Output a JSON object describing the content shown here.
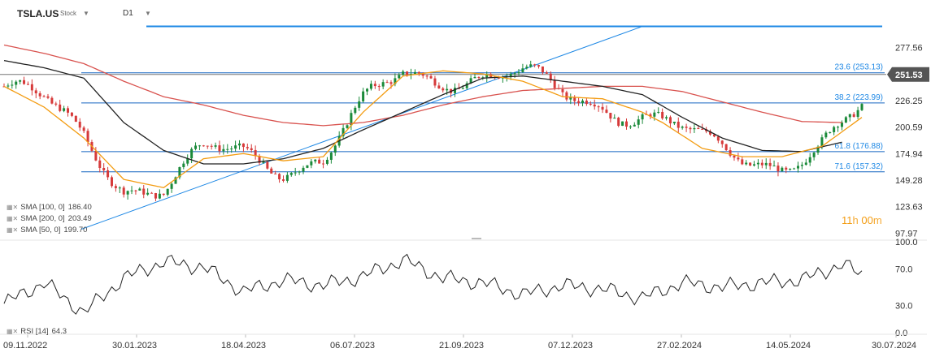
{
  "header": {
    "symbol": "TSLA.US",
    "symbol_type": "Stock",
    "timeframe": "D1"
  },
  "indicators": [
    {
      "label": "SMA [100, 0]",
      "value": "186.40",
      "color": "#222222"
    },
    {
      "label": "SMA [200, 0]",
      "value": "203.49",
      "color": "#d9534f"
    },
    {
      "label": "SMA [50, 0]",
      "value": "199.70",
      "color": "#f39c12"
    }
  ],
  "rsi_label": {
    "label": "RSI [14]",
    "value": "64.3"
  },
  "countdown": {
    "hours": "11",
    "h_unit": "h",
    "minutes": "00",
    "m_unit": "m"
  },
  "chart_data": [
    {
      "type": "candlestick",
      "title": "TSLA.US",
      "price_axis_ticks": [
        "277.56",
        "251.53",
        "226.25",
        "200.59",
        "174.94",
        "149.28",
        "123.63",
        "97.97"
      ],
      "ylim": [
        92,
        300
      ],
      "date_axis_ticks": [
        "09.11.2022",
        "30.01.2023",
        "18.04.2023",
        "06.07.2023",
        "21.09.2023",
        "07.12.2023",
        "27.02.2024",
        "14.05.2024",
        "30.07.2024"
      ],
      "current_price": "251.53",
      "current_price_color": "#555555",
      "fibonacci_levels": [
        {
          "label": "23.6 (253.13)",
          "value": 253.13
        },
        {
          "label": "38.2 (223.99)",
          "value": 223.99
        },
        {
          "label": "61.8 (176.88)",
          "value": 176.88
        },
        {
          "label": "71.6 (157.32)",
          "value": 157.32
        }
      ],
      "top_resistance_value": 298,
      "trendline": {
        "from": {
          "date": "Jan 2023",
          "value": 101.8
        },
        "to": {
          "date": "Oct 2023",
          "value": 298
        }
      },
      "ma_keypoints": {
        "sma50": [
          [
            0,
            240
          ],
          [
            10,
            220
          ],
          [
            20,
            190
          ],
          [
            30,
            150
          ],
          [
            40,
            142
          ],
          [
            50,
            170
          ],
          [
            60,
            175
          ],
          [
            70,
            168
          ],
          [
            80,
            172
          ],
          [
            90,
            215
          ],
          [
            100,
            250
          ],
          [
            110,
            255
          ],
          [
            120,
            252
          ],
          [
            130,
            245
          ],
          [
            140,
            230
          ],
          [
            150,
            228
          ],
          [
            160,
            215
          ],
          [
            165,
            205
          ],
          [
            175,
            180
          ],
          [
            185,
            172
          ],
          [
            195,
            172
          ],
          [
            205,
            182
          ],
          [
            215,
            210
          ]
        ],
        "sma100": [
          [
            0,
            265
          ],
          [
            10,
            258
          ],
          [
            20,
            248
          ],
          [
            30,
            205
          ],
          [
            40,
            178
          ],
          [
            50,
            165
          ],
          [
            60,
            165
          ],
          [
            70,
            170
          ],
          [
            80,
            180
          ],
          [
            90,
            198
          ],
          [
            100,
            215
          ],
          [
            110,
            232
          ],
          [
            120,
            248
          ],
          [
            130,
            250
          ],
          [
            140,
            245
          ],
          [
            150,
            240
          ],
          [
            160,
            232
          ],
          [
            170,
            210
          ],
          [
            180,
            190
          ],
          [
            190,
            178
          ],
          [
            200,
            177
          ],
          [
            210,
            186
          ]
        ],
        "sma200": [
          [
            0,
            280
          ],
          [
            10,
            272
          ],
          [
            20,
            262
          ],
          [
            30,
            245
          ],
          [
            40,
            230
          ],
          [
            50,
            222
          ],
          [
            60,
            212
          ],
          [
            70,
            205
          ],
          [
            80,
            202
          ],
          [
            90,
            205
          ],
          [
            100,
            212
          ],
          [
            110,
            222
          ],
          [
            120,
            230
          ],
          [
            130,
            236
          ],
          [
            140,
            238
          ],
          [
            150,
            240
          ],
          [
            160,
            240
          ],
          [
            170,
            235
          ],
          [
            180,
            225
          ],
          [
            190,
            215
          ],
          [
            200,
            206
          ],
          [
            210,
            205
          ]
        ]
      },
      "series": [
        {
          "name": "SMA [100, 0]",
          "last_value": 186.4
        },
        {
          "name": "SMA [200, 0]",
          "last_value": 203.49
        },
        {
          "name": "SMA [50, 0]",
          "last_value": 199.7
        }
      ]
    },
    {
      "type": "line",
      "title": "RSI [14]",
      "ylim": [
        0,
        100
      ],
      "y_ticks": [
        "100.0",
        "70.0",
        "30.0",
        "0.0"
      ],
      "last_value": 64.3,
      "keypoints": [
        [
          0,
          32
        ],
        [
          10,
          55
        ],
        [
          20,
          22
        ],
        [
          30,
          60
        ],
        [
          40,
          78
        ],
        [
          50,
          72
        ],
        [
          60,
          45
        ],
        [
          70,
          58
        ],
        [
          80,
          52
        ],
        [
          90,
          62
        ],
        [
          100,
          80
        ],
        [
          110,
          60
        ],
        [
          120,
          55
        ],
        [
          130,
          42
        ],
        [
          140,
          52
        ],
        [
          150,
          48
        ],
        [
          160,
          38
        ],
        [
          170,
          55
        ],
        [
          180,
          50
        ],
        [
          190,
          55
        ],
        [
          200,
          58
        ],
        [
          210,
          75
        ],
        [
          215,
          64.3
        ]
      ]
    }
  ]
}
